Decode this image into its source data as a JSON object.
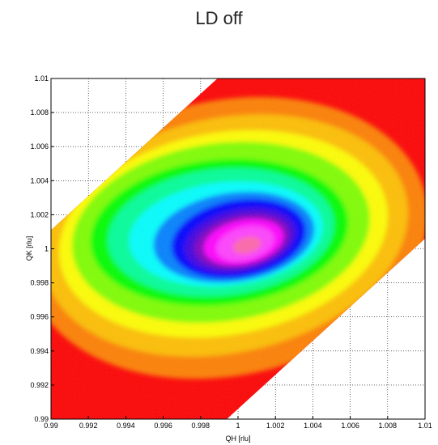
{
  "chart_data": {
    "type": "heatmap",
    "title": "LD off",
    "xlabel": "QH [rlu]",
    "ylabel": "QK [rlu]",
    "xlim": [
      0.99,
      1.01
    ],
    "ylim": [
      0.99,
      1.01
    ],
    "x_ticks": [
      "0.99",
      "0.992",
      "0.994",
      "0.996",
      "0.998",
      "1",
      "1.002",
      "1.004",
      "1.006",
      "1.008",
      "1.01"
    ],
    "y_ticks": [
      "0.99",
      "0.992",
      "0.994",
      "0.996",
      "0.998",
      "1",
      "1.002",
      "1.004",
      "1.006",
      "1.008",
      "1.01"
    ],
    "grid": true,
    "colormap": [
      "#ff0000",
      "#ff7f00",
      "#ffff00",
      "#00ff00",
      "#00ffff",
      "#0000ff",
      "#ff00ff"
    ],
    "peak_center": [
      1.0003,
      1.0004
    ],
    "data_region": "band between lines QK = QH - 0.0094 and QK = QH + 0.0111"
  }
}
